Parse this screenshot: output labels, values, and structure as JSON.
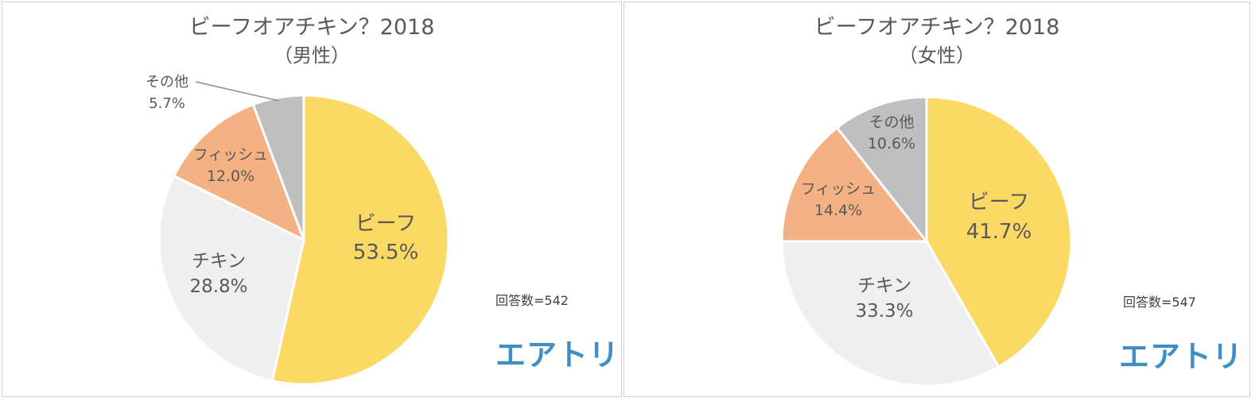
{
  "chart_data": [
    {
      "type": "pie",
      "title": "ビーフオアチキン？2018",
      "subtitle": "（男性）",
      "respondents": "回答数=542",
      "logo": "エアトリ",
      "slices": [
        {
          "name": "ビーフ",
          "value": 53.5,
          "label": "53.5%",
          "color": "#fcd965"
        },
        {
          "name": "チキン",
          "value": 28.8,
          "label": "28.8%",
          "color": "#efefef"
        },
        {
          "name": "フィッシュ",
          "value": 12.0,
          "label": "12.0%",
          "color": "#f4b183"
        },
        {
          "name": "その他",
          "value": 5.7,
          "label": "5.7%",
          "color": "#bfbfbf"
        }
      ]
    },
    {
      "type": "pie",
      "title": "ビーフオアチキン？2018",
      "subtitle": "（女性）",
      "respondents": "回答数=547",
      "logo": "エアトリ",
      "slices": [
        {
          "name": "ビーフ",
          "value": 41.7,
          "label": "41.7%",
          "color": "#fcd965"
        },
        {
          "name": "チキン",
          "value": 33.3,
          "label": "33.3%",
          "color": "#efefef"
        },
        {
          "name": "フィッシュ",
          "value": 14.4,
          "label": "14.4%",
          "color": "#f4b183"
        },
        {
          "name": "その他",
          "value": 10.6,
          "label": "10.6%",
          "color": "#bfbfbf"
        }
      ]
    }
  ]
}
